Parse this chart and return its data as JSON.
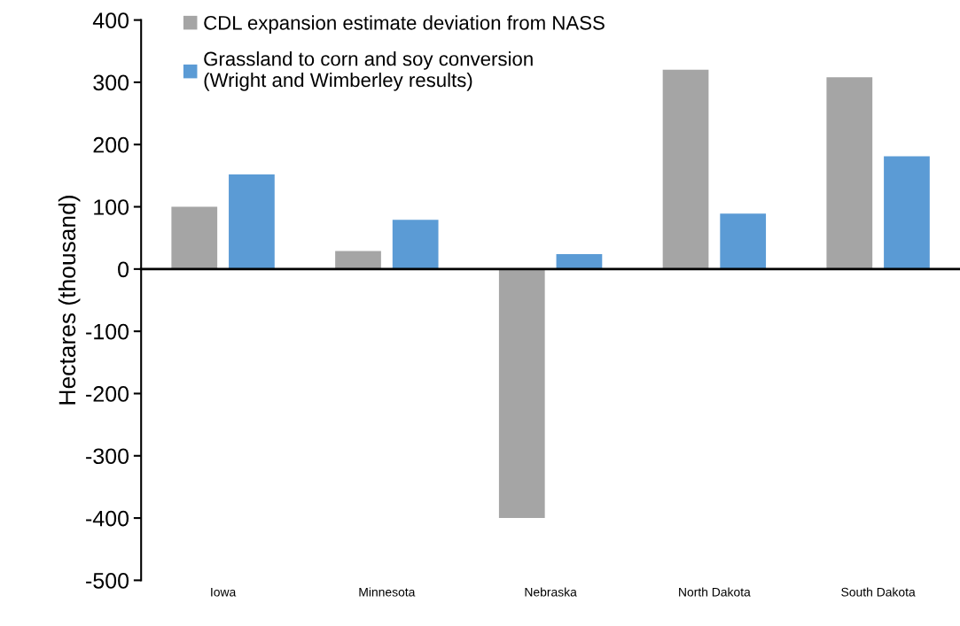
{
  "chart_data": {
    "type": "bar",
    "ylabel": "Hectares (thousand)",
    "categories": [
      "Iowa",
      "Minnesota",
      "Nebraska",
      "North Dakota",
      "South Dakota"
    ],
    "series": [
      {
        "name": "CDL expansion estimate deviation from NASS",
        "color": "#a5a5a5",
        "values": [
          100,
          29,
          -400,
          320,
          308
        ]
      },
      {
        "name": "Grassland to corn and soy conversion\n(Wright and Wimberley results)",
        "color": "#5b9bd5",
        "values": [
          152,
          79,
          24,
          89,
          181
        ]
      }
    ],
    "ylim": [
      -500,
      400
    ],
    "yticks": [
      -500,
      -400,
      -300,
      -200,
      -100,
      0,
      100,
      200,
      300,
      400
    ],
    "legend": "top left"
  }
}
